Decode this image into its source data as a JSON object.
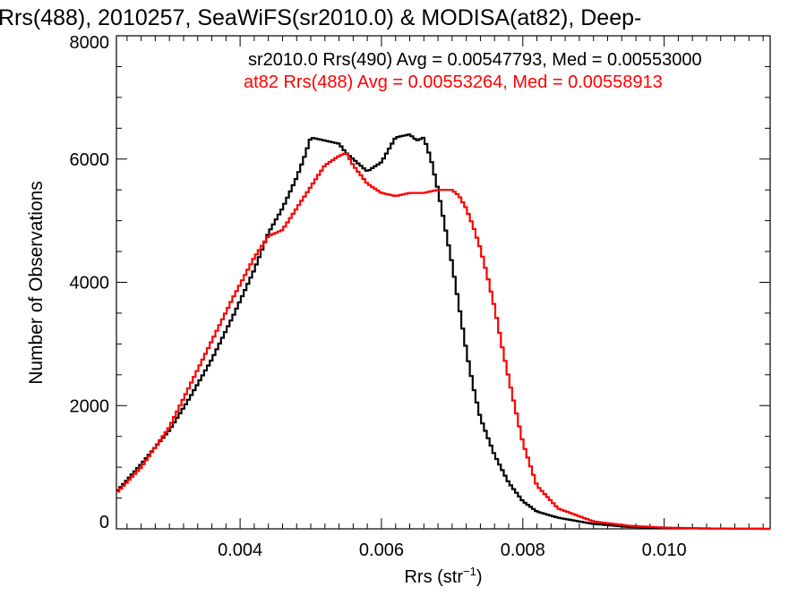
{
  "chart_data": {
    "type": "line",
    "title": "Rrs(488), 2010257, SeaWiFS(sr2010.0) & MODISA(at82), Deep-",
    "xlabel": "Rrs (str",
    "xlabel_sup": "−1",
    "xlabel_end": ")",
    "ylabel": "Number of Observations",
    "xlim": [
      0.00225,
      0.0115
    ],
    "ylim": [
      0,
      8000
    ],
    "x_ticks": [
      0.004,
      0.006,
      0.008,
      0.01
    ],
    "x_tick_labels": [
      "0.004",
      "0.006",
      "0.008",
      "0.010"
    ],
    "y_ticks": [
      0,
      2000,
      4000,
      6000,
      8000
    ],
    "y_tick_labels": [
      "0",
      "2000",
      "4000",
      "6000",
      "8000"
    ],
    "annotations": [
      {
        "text": "sr2010.0 Rrs(490) Avg = 0.00547793, Med = 0.00553000",
        "color": "#000000"
      },
      {
        "text": "at82 Rrs(488) Avg = 0.00553264, Med = 0.00558913",
        "color": "#ff0000"
      }
    ],
    "series": [
      {
        "color": "#000000",
        "x": [
          0.00225,
          0.0026,
          0.003,
          0.0033,
          0.0036,
          0.0039,
          0.0042,
          0.0044,
          0.0046,
          0.0048,
          0.0049,
          0.005,
          0.0052,
          0.0054,
          0.0055,
          0.0056,
          0.0058,
          0.006,
          0.0062,
          0.0064,
          0.0065,
          0.0066,
          0.0067,
          0.0068,
          0.0069,
          0.007,
          0.0071,
          0.0072,
          0.0073,
          0.0074,
          0.0076,
          0.0078,
          0.008,
          0.0082,
          0.0085,
          0.009,
          0.0095,
          0.01,
          0.0105,
          0.011,
          0.0115
        ],
        "values": [
          600,
          1050,
          1600,
          2150,
          2750,
          3450,
          4200,
          4800,
          5200,
          5700,
          6000,
          6350,
          6300,
          6250,
          6100,
          6000,
          5800,
          5950,
          6350,
          6400,
          6300,
          6350,
          6000,
          5500,
          4900,
          4300,
          3600,
          2900,
          2300,
          1800,
          1200,
          750,
          450,
          280,
          180,
          80,
          30,
          15,
          8,
          3,
          0
        ]
      },
      {
        "color": "#ff0000",
        "x": [
          0.00225,
          0.0026,
          0.003,
          0.0033,
          0.0036,
          0.0039,
          0.0042,
          0.0044,
          0.0046,
          0.0048,
          0.005,
          0.0052,
          0.0054,
          0.0055,
          0.0056,
          0.0058,
          0.006,
          0.0062,
          0.0064,
          0.0066,
          0.0068,
          0.007,
          0.0071,
          0.0072,
          0.0073,
          0.0074,
          0.0075,
          0.0076,
          0.0077,
          0.0078,
          0.008,
          0.0082,
          0.0085,
          0.009,
          0.0095,
          0.01,
          0.0105,
          0.011,
          0.0115
        ],
        "values": [
          580,
          1000,
          1650,
          2350,
          3050,
          3750,
          4400,
          4750,
          4850,
          5200,
          5550,
          5900,
          6050,
          6100,
          5900,
          5600,
          5450,
          5400,
          5450,
          5450,
          5500,
          5500,
          5400,
          5200,
          4900,
          4550,
          4100,
          3600,
          3000,
          2450,
          1400,
          700,
          330,
          120,
          50,
          20,
          8,
          3,
          0
        ]
      }
    ]
  }
}
